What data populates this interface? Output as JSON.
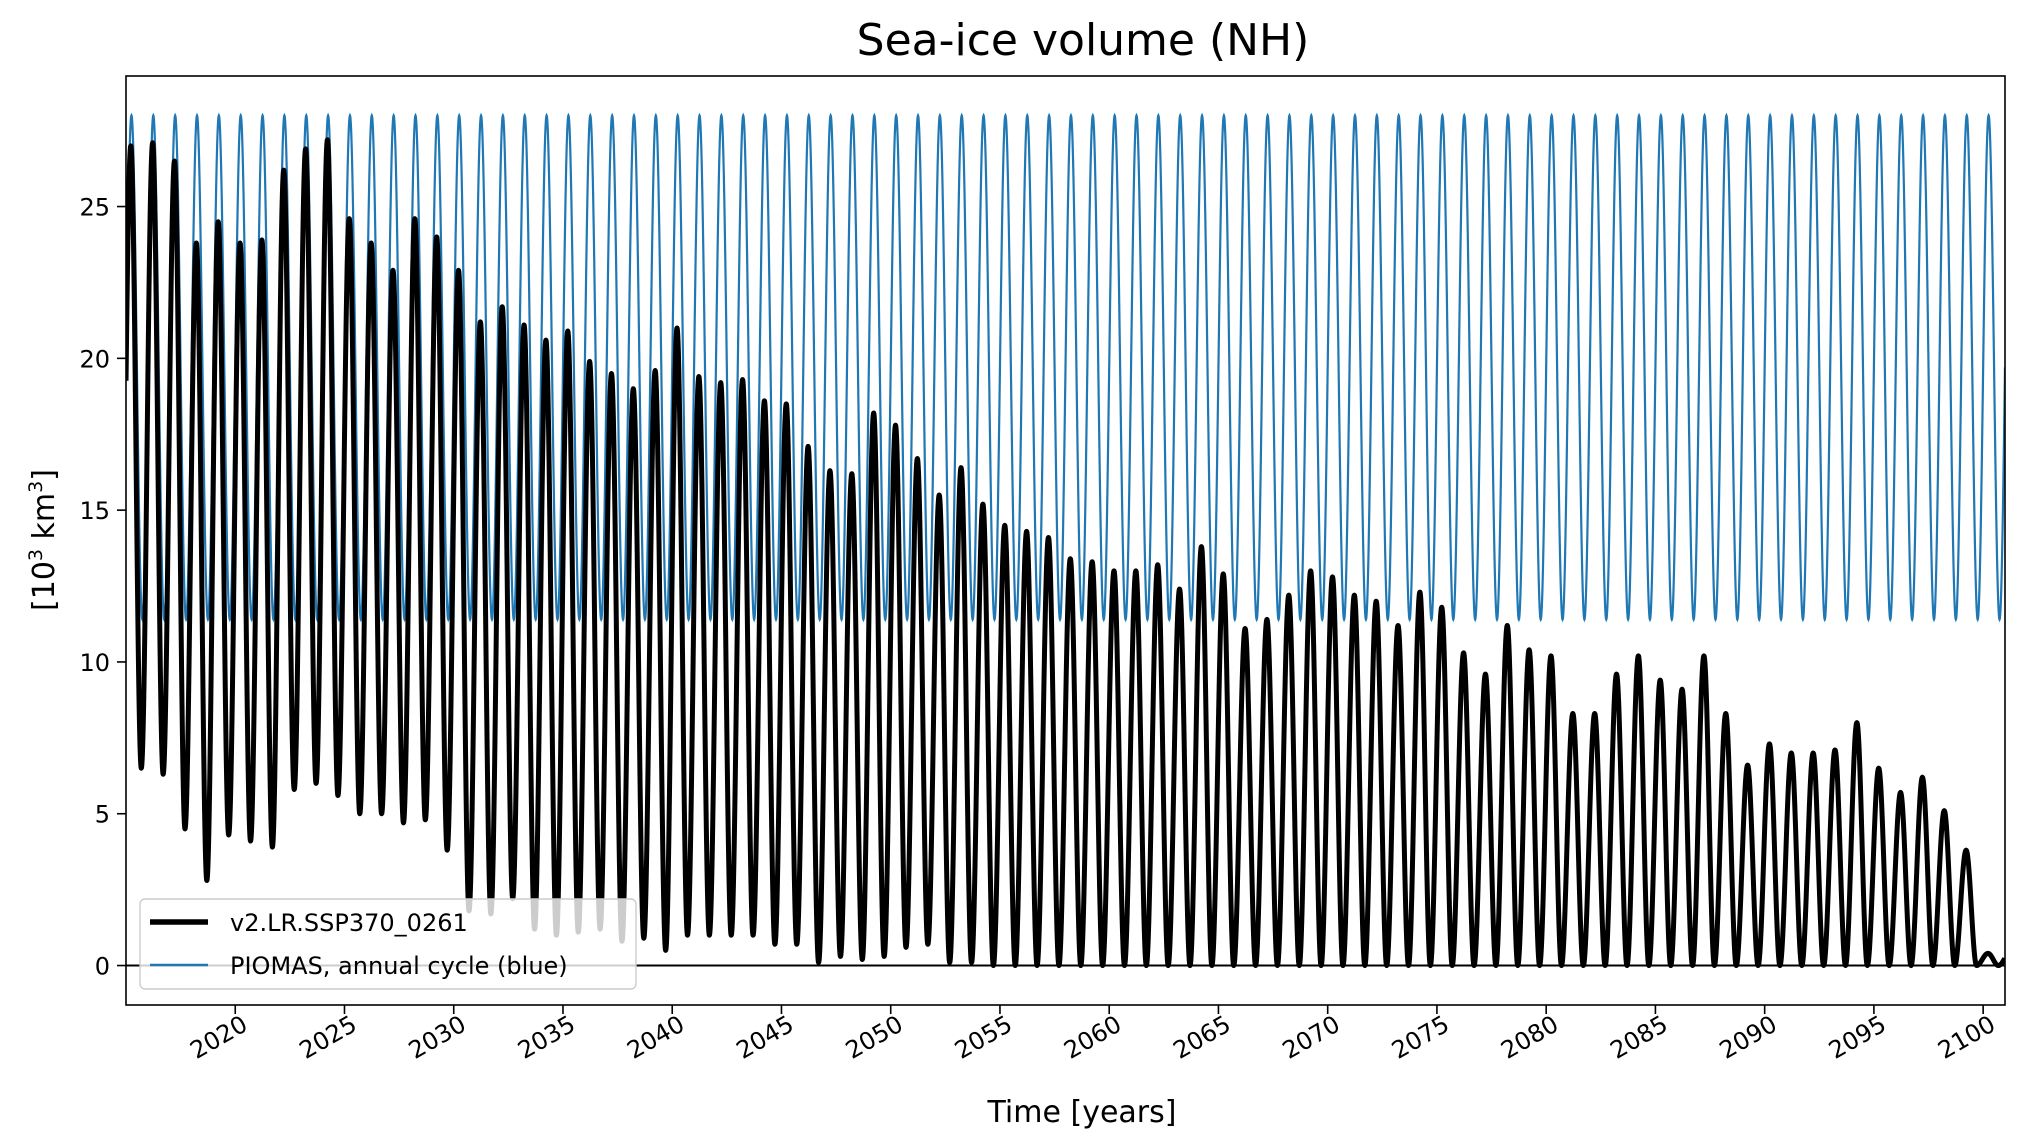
{
  "chart_data": {
    "type": "line",
    "title": "Sea-ice volume (NH)",
    "xlabel": "Time [years]",
    "ylabel": "[10",
    "ylabel_sup": "3",
    "ylabel_tail": " km",
    "ylabel_sup2": "3",
    "ylabel_close": "]",
    "xlim": [
      2015,
      2101
    ],
    "ylim": [
      -1.3,
      29.3
    ],
    "x_ticks": [
      2020,
      2025,
      2030,
      2035,
      2040,
      2045,
      2050,
      2055,
      2060,
      2065,
      2070,
      2075,
      2080,
      2085,
      2090,
      2095,
      2100
    ],
    "x_tick_labels": [
      "2020",
      "2025",
      "2030",
      "2035",
      "2040",
      "2045",
      "2050",
      "2055",
      "2060",
      "2065",
      "2070",
      "2075",
      "2080",
      "2085",
      "2090",
      "2095",
      "2100"
    ],
    "y_ticks": [
      0,
      5,
      10,
      15,
      20,
      25
    ],
    "y_tick_labels": [
      "0",
      "5",
      "10",
      "15",
      "20",
      "25"
    ],
    "grid": false,
    "legend_position": "lower-left",
    "hline": 0,
    "series": [
      {
        "name": "v2.LR.SSP370_0261",
        "color": "#000000",
        "style": "thick-black",
        "start_year": 2015,
        "annual_max": [
          27.0,
          27.1,
          26.5,
          23.8,
          24.5,
          23.8,
          23.9,
          26.2,
          26.9,
          27.2,
          24.6,
          23.8,
          22.9,
          24.6,
          24.0,
          22.9,
          21.2,
          21.7,
          21.1,
          20.6,
          20.9,
          19.9,
          19.5,
          19.0,
          19.6,
          21.0,
          19.4,
          19.2,
          19.3,
          18.6,
          18.5,
          17.1,
          16.3,
          16.2,
          18.2,
          17.8,
          16.7,
          15.5,
          16.4,
          15.2,
          14.5,
          14.3,
          14.1,
          13.4,
          13.3,
          13.0,
          13.0,
          13.2,
          12.4,
          13.8,
          12.9,
          11.1,
          11.4,
          12.2,
          13.0,
          12.8,
          12.2,
          12.0,
          11.2,
          12.3,
          11.8,
          10.3,
          9.6,
          11.2,
          10.4,
          10.2,
          8.3,
          8.3,
          9.6,
          10.2,
          9.4,
          9.1,
          10.2,
          8.3,
          6.6,
          7.3,
          7.0,
          7.0,
          7.1,
          8.0,
          6.5,
          5.7,
          6.2,
          5.1,
          3.8,
          0.4
        ],
        "annual_min": [
          6.5,
          6.3,
          4.5,
          2.8,
          4.3,
          4.1,
          3.9,
          5.8,
          6.0,
          5.6,
          5.0,
          5.0,
          4.7,
          4.8,
          3.8,
          1.8,
          1.7,
          2.2,
          1.2,
          1.0,
          1.1,
          1.2,
          0.8,
          0.9,
          0.5,
          1.0,
          1.0,
          1.0,
          1.0,
          0.7,
          0.7,
          0.1,
          0.3,
          0.2,
          0.3,
          0.6,
          0.7,
          0.1,
          0.1,
          0.0,
          0.0,
          0.0,
          0.0,
          0.0,
          0.0,
          0.0,
          0.0,
          0.0,
          0.0,
          0.0,
          0.0,
          0.0,
          0.0,
          0.0,
          0.0,
          0.0,
          0.0,
          0.0,
          0.0,
          0.0,
          0.0,
          0.0,
          0.0,
          0.0,
          0.0,
          0.0,
          0.0,
          0.0,
          0.0,
          0.0,
          0.0,
          0.0,
          0.0,
          0.0,
          0.0,
          0.0,
          0.0,
          0.0,
          0.0,
          0.0,
          0.0,
          0.0,
          0.0,
          0.0,
          0.0,
          0.0
        ]
      },
      {
        "name": "PIOMAS, annual cycle (blue)",
        "color": "#1f77b4",
        "style": "thin-blue",
        "annual_max": 28.0,
        "annual_min": 11.4
      }
    ]
  }
}
